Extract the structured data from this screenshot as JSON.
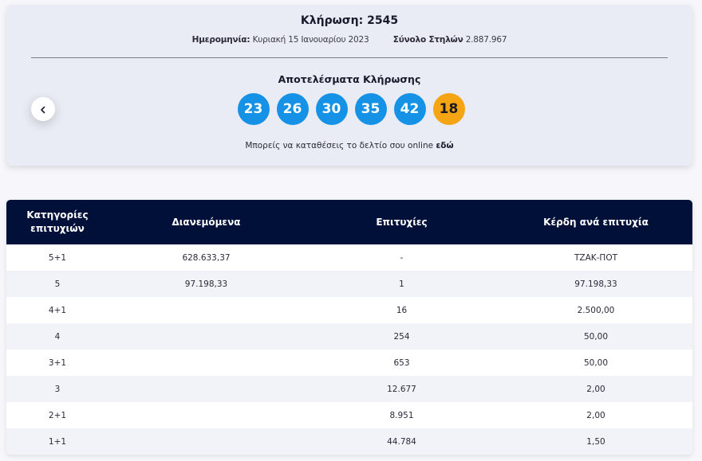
{
  "draw": {
    "title": "Κλήρωση: 2545",
    "date_label": "Ημερομηνία:",
    "date_value": "Κυριακή 15 Ιανουαρίου 2023",
    "columns_label": "Σύνολο Στηλών",
    "columns_value": "2.887.967",
    "results_title": "Αποτελέσματα Κλήρωσης",
    "numbers": [
      "23",
      "26",
      "30",
      "35",
      "42"
    ],
    "joker": "18",
    "cta_text": "Μπορείς να καταθέσεις το δελτίο σου online",
    "cta_link": "εδώ",
    "prev_icon": "chevron-left-icon"
  },
  "colors": {
    "ball_blue": "#1592e6",
    "ball_joker": "#f5a414",
    "table_header": "#001038"
  },
  "table": {
    "headers": [
      "Κατηγορίες επιτυχιών",
      "Διανεμόμενα",
      "Επιτυχίες",
      "Κέρδη ανά επιτυχία"
    ],
    "rows": [
      [
        "5+1",
        "628.633,37",
        "-",
        "ΤΖΑΚ-ΠΟΤ"
      ],
      [
        "5",
        "97.198,33",
        "1",
        "97.198,33"
      ],
      [
        "4+1",
        "",
        "16",
        "2.500,00"
      ],
      [
        "4",
        "",
        "254",
        "50,00"
      ],
      [
        "3+1",
        "",
        "653",
        "50,00"
      ],
      [
        "3",
        "",
        "12.677",
        "2,00"
      ],
      [
        "2+1",
        "",
        "8.951",
        "2,00"
      ],
      [
        "1+1",
        "",
        "44.784",
        "1,50"
      ]
    ]
  }
}
